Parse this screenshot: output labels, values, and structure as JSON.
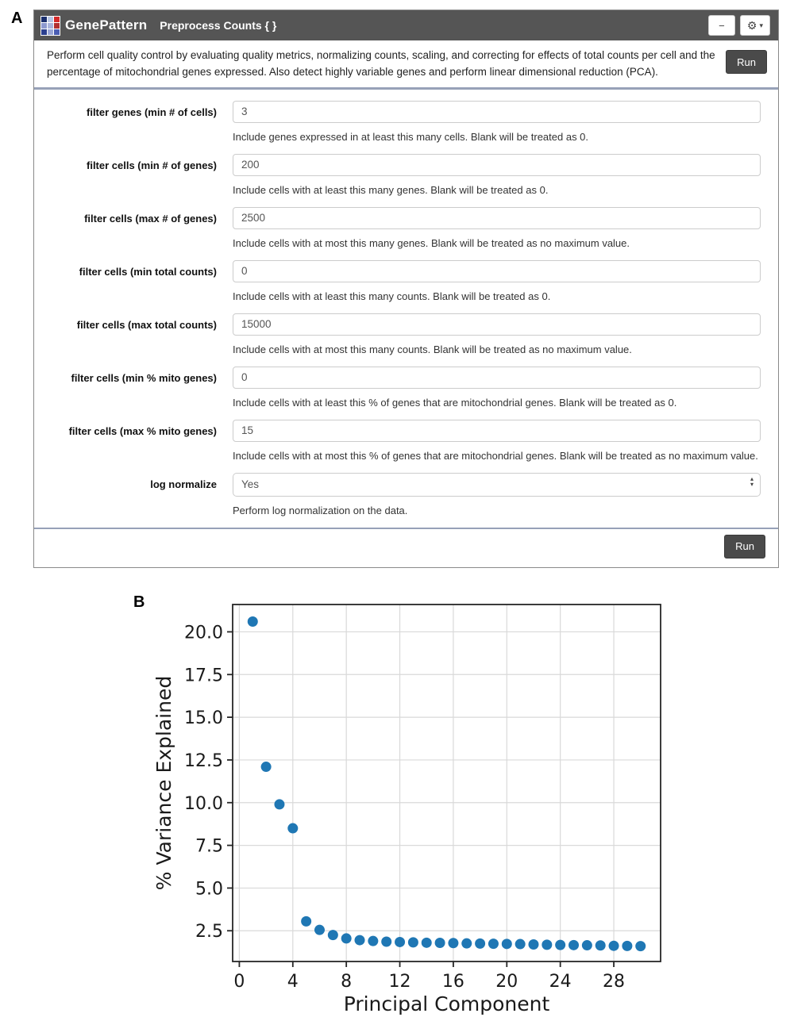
{
  "panel_a_label": "A",
  "panel_b_label": "B",
  "module": {
    "brand": "GenePattern",
    "title": "Preprocess Counts { }",
    "minimize_glyph": "−",
    "gear_glyph": "⚙",
    "caret_glyph": "▾",
    "description": "Perform cell quality control by evaluating quality metrics, normalizing counts, scaling, and correcting for effects of total counts per cell and the percentage of mitochondrial genes expressed. Also detect highly variable genes and perform linear dimensional reduction (PCA).",
    "run_label": "Run",
    "footer_run_label": "Run",
    "logo_colors": [
      "#1b2f6e",
      "#b9c6e4",
      "#d42a2a",
      "#8d99cf",
      "#aab4dc",
      "#b23030",
      "#2b3f8e",
      "#9aa6d6",
      "#4a5db3"
    ],
    "fields": [
      {
        "name": "filter-genes-min-cells",
        "label": "filter genes (min # of cells)",
        "value": "3",
        "type": "text",
        "help": "Include genes expressed in at least this many cells. Blank will be treated as 0."
      },
      {
        "name": "filter-cells-min-genes",
        "label": "filter cells (min # of genes)",
        "value": "200",
        "type": "text",
        "help": "Include cells with at least this many genes. Blank will be treated as 0."
      },
      {
        "name": "filter-cells-max-genes",
        "label": "filter cells (max # of genes)",
        "value": "2500",
        "type": "text",
        "help": "Include cells with at most this many genes. Blank will be treated as no maximum value."
      },
      {
        "name": "filter-cells-min-total-counts",
        "label": "filter cells (min total counts)",
        "value": "0",
        "type": "text",
        "help": "Include cells with at least this many counts. Blank will be treated as 0."
      },
      {
        "name": "filter-cells-max-total-counts",
        "label": "filter cells (max total counts)",
        "value": "15000",
        "type": "text",
        "help": "Include cells with at most this many counts. Blank will be treated as no maximum value."
      },
      {
        "name": "filter-cells-min-pct-mito-genes",
        "label": "filter cells (min % mito genes)",
        "value": "0",
        "type": "text",
        "help": "Include cells with at least this % of genes that are mitochondrial genes. Blank will be treated as 0."
      },
      {
        "name": "filter-cells-max-pct-mito-genes",
        "label": "filter cells (max % mito genes)",
        "value": "15",
        "type": "text",
        "help": "Include cells with at most this % of genes that are mitochondrial genes. Blank will be treated as no maximum value."
      },
      {
        "name": "log-normalize",
        "label": "log normalize",
        "value": "Yes",
        "type": "select",
        "help": "Perform log normalization on the data."
      }
    ]
  },
  "chart_data": {
    "type": "scatter",
    "title": "",
    "xlabel": "Principal Component",
    "ylabel": "% Variance Explained",
    "x": [
      1,
      2,
      3,
      4,
      5,
      6,
      7,
      8,
      9,
      10,
      11,
      12,
      13,
      14,
      15,
      16,
      17,
      18,
      19,
      20,
      21,
      22,
      23,
      24,
      25,
      26,
      27,
      28,
      29,
      30
    ],
    "y": [
      20.6,
      12.1,
      9.9,
      8.5,
      3.05,
      2.55,
      2.25,
      2.05,
      1.95,
      1.9,
      1.86,
      1.84,
      1.82,
      1.8,
      1.79,
      1.78,
      1.76,
      1.75,
      1.74,
      1.73,
      1.72,
      1.7,
      1.68,
      1.67,
      1.66,
      1.65,
      1.64,
      1.62,
      1.61,
      1.6
    ],
    "xlim": [
      -0.5,
      31.5
    ],
    "ylim": [
      0.7,
      21.6
    ],
    "xticks": [
      0,
      4,
      8,
      12,
      16,
      20,
      24,
      28
    ],
    "yticks": [
      2.5,
      5.0,
      7.5,
      10.0,
      12.5,
      15.0,
      17.5,
      20.0
    ],
    "grid": true,
    "legend": null,
    "point_color": "#1f77b4",
    "grid_color": "#d9d9d9",
    "spine_color": "#262626"
  }
}
